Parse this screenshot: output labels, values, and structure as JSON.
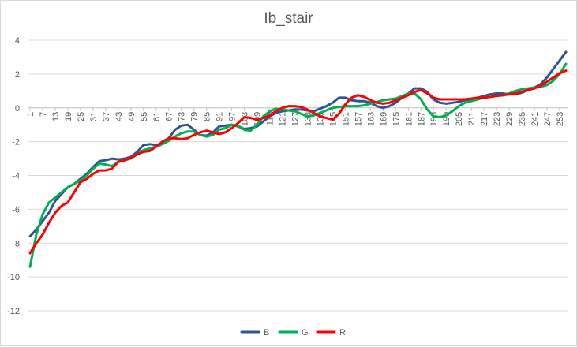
{
  "chart_data": {
    "type": "line",
    "title": "Ib_stair",
    "xlabel": "",
    "ylabel": "",
    "ylim": [
      -12,
      4
    ],
    "y_ticks": [
      4,
      2,
      0,
      -2,
      -4,
      -6,
      -8,
      -10,
      -12
    ],
    "x_range": [
      1,
      256
    ],
    "x_tick_labels": [
      "1",
      "7",
      "13",
      "19",
      "25",
      "31",
      "37",
      "43",
      "49",
      "55",
      "61",
      "67",
      "73",
      "79",
      "85",
      "91",
      "97",
      "103",
      "109",
      "115",
      "121",
      "127",
      "133",
      "139",
      "145",
      "151",
      "157",
      "163",
      "169",
      "175",
      "181",
      "187",
      "193",
      "199",
      "205",
      "211",
      "217",
      "223",
      "229",
      "235",
      "241",
      "247",
      "253"
    ],
    "grid": "horizontal",
    "legend_position": "bottom",
    "series": [
      {
        "name": "B",
        "color": "#2f5597",
        "points": [
          [
            1,
            -7.6
          ],
          [
            4,
            -7.2
          ],
          [
            7,
            -6.7
          ],
          [
            10,
            -6.2
          ],
          [
            13,
            -5.5
          ],
          [
            16,
            -5.1
          ],
          [
            19,
            -4.7
          ],
          [
            22,
            -4.5
          ],
          [
            25,
            -4.2
          ],
          [
            28,
            -3.9
          ],
          [
            31,
            -3.5
          ],
          [
            34,
            -3.15
          ],
          [
            37,
            -3.1
          ],
          [
            40,
            -3.0
          ],
          [
            43,
            -3.05
          ],
          [
            46,
            -3.0
          ],
          [
            49,
            -2.9
          ],
          [
            52,
            -2.6
          ],
          [
            55,
            -2.2
          ],
          [
            58,
            -2.15
          ],
          [
            61,
            -2.2
          ],
          [
            64,
            -2.1
          ],
          [
            67,
            -1.8
          ],
          [
            70,
            -1.3
          ],
          [
            73,
            -1.05
          ],
          [
            76,
            -1.0
          ],
          [
            79,
            -1.3
          ],
          [
            82,
            -1.6
          ],
          [
            85,
            -1.65
          ],
          [
            88,
            -1.45
          ],
          [
            91,
            -1.1
          ],
          [
            94,
            -1.05
          ],
          [
            97,
            -1.0
          ],
          [
            100,
            -1.1
          ],
          [
            103,
            -1.25
          ],
          [
            106,
            -1.2
          ],
          [
            109,
            -1.1
          ],
          [
            112,
            -0.8
          ],
          [
            115,
            -0.5
          ],
          [
            118,
            -0.3
          ],
          [
            121,
            -0.2
          ],
          [
            124,
            -0.15
          ],
          [
            127,
            -0.1
          ],
          [
            130,
            -0.1
          ],
          [
            133,
            -0.15
          ],
          [
            136,
            -0.2
          ],
          [
            139,
            -0.05
          ],
          [
            142,
            0.1
          ],
          [
            145,
            0.3
          ],
          [
            148,
            0.6
          ],
          [
            151,
            0.6
          ],
          [
            154,
            0.45
          ],
          [
            157,
            0.4
          ],
          [
            160,
            0.4
          ],
          [
            163,
            0.3
          ],
          [
            166,
            0.1
          ],
          [
            169,
            0.0
          ],
          [
            172,
            0.1
          ],
          [
            175,
            0.3
          ],
          [
            178,
            0.6
          ],
          [
            181,
            0.85
          ],
          [
            184,
            1.15
          ],
          [
            187,
            1.15
          ],
          [
            190,
            0.95
          ],
          [
            193,
            0.5
          ],
          [
            196,
            0.3
          ],
          [
            199,
            0.25
          ],
          [
            202,
            0.3
          ],
          [
            205,
            0.35
          ],
          [
            208,
            0.45
          ],
          [
            211,
            0.5
          ],
          [
            214,
            0.6
          ],
          [
            217,
            0.7
          ],
          [
            220,
            0.8
          ],
          [
            223,
            0.85
          ],
          [
            226,
            0.85
          ],
          [
            229,
            0.8
          ],
          [
            232,
            0.8
          ],
          [
            235,
            0.9
          ],
          [
            238,
            1.05
          ],
          [
            241,
            1.2
          ],
          [
            244,
            1.4
          ],
          [
            247,
            1.8
          ],
          [
            250,
            2.3
          ],
          [
            253,
            2.8
          ],
          [
            256,
            3.3
          ]
        ]
      },
      {
        "name": "G",
        "color": "#00b050",
        "points": [
          [
            1,
            -9.4
          ],
          [
            4,
            -7.5
          ],
          [
            7,
            -6.3
          ],
          [
            10,
            -5.6
          ],
          [
            13,
            -5.3
          ],
          [
            16,
            -5.0
          ],
          [
            19,
            -4.7
          ],
          [
            22,
            -4.5
          ],
          [
            25,
            -4.3
          ],
          [
            28,
            -4.0
          ],
          [
            31,
            -3.6
          ],
          [
            34,
            -3.3
          ],
          [
            37,
            -3.35
          ],
          [
            40,
            -3.45
          ],
          [
            43,
            -3.2
          ],
          [
            46,
            -3.1
          ],
          [
            49,
            -3.0
          ],
          [
            52,
            -2.75
          ],
          [
            55,
            -2.5
          ],
          [
            58,
            -2.4
          ],
          [
            61,
            -2.3
          ],
          [
            64,
            -2.15
          ],
          [
            67,
            -1.95
          ],
          [
            70,
            -1.7
          ],
          [
            73,
            -1.5
          ],
          [
            76,
            -1.4
          ],
          [
            79,
            -1.4
          ],
          [
            82,
            -1.6
          ],
          [
            85,
            -1.7
          ],
          [
            88,
            -1.6
          ],
          [
            91,
            -1.3
          ],
          [
            94,
            -1.2
          ],
          [
            97,
            -1.0
          ],
          [
            100,
            -1.05
          ],
          [
            103,
            -1.3
          ],
          [
            106,
            -1.35
          ],
          [
            109,
            -1.0
          ],
          [
            112,
            -0.5
          ],
          [
            115,
            -0.2
          ],
          [
            118,
            -0.05
          ],
          [
            121,
            -0.1
          ],
          [
            124,
            -0.15
          ],
          [
            127,
            -0.2
          ],
          [
            130,
            -0.35
          ],
          [
            133,
            -0.5
          ],
          [
            136,
            -0.45
          ],
          [
            139,
            -0.3
          ],
          [
            142,
            -0.15
          ],
          [
            145,
            0.0
          ],
          [
            148,
            0.05
          ],
          [
            151,
            0.1
          ],
          [
            154,
            0.1
          ],
          [
            157,
            0.1
          ],
          [
            160,
            0.15
          ],
          [
            163,
            0.25
          ],
          [
            166,
            0.35
          ],
          [
            169,
            0.45
          ],
          [
            172,
            0.5
          ],
          [
            175,
            0.55
          ],
          [
            178,
            0.7
          ],
          [
            181,
            0.85
          ],
          [
            184,
            0.85
          ],
          [
            187,
            0.5
          ],
          [
            190,
            -0.1
          ],
          [
            193,
            -0.5
          ],
          [
            196,
            -0.55
          ],
          [
            199,
            -0.45
          ],
          [
            202,
            -0.2
          ],
          [
            205,
            0.1
          ],
          [
            208,
            0.3
          ],
          [
            211,
            0.4
          ],
          [
            214,
            0.5
          ],
          [
            217,
            0.6
          ],
          [
            220,
            0.65
          ],
          [
            223,
            0.7
          ],
          [
            226,
            0.75
          ],
          [
            229,
            0.85
          ],
          [
            232,
            1.0
          ],
          [
            235,
            1.1
          ],
          [
            238,
            1.15
          ],
          [
            241,
            1.2
          ],
          [
            244,
            1.25
          ],
          [
            247,
            1.35
          ],
          [
            250,
            1.6
          ],
          [
            253,
            2.0
          ],
          [
            256,
            2.6
          ]
        ]
      },
      {
        "name": "R",
        "color": "#ff0000",
        "points": [
          [
            1,
            -8.6
          ],
          [
            4,
            -8.0
          ],
          [
            7,
            -7.5
          ],
          [
            10,
            -6.8
          ],
          [
            13,
            -6.2
          ],
          [
            16,
            -5.8
          ],
          [
            19,
            -5.6
          ],
          [
            22,
            -5.0
          ],
          [
            25,
            -4.4
          ],
          [
            28,
            -4.2
          ],
          [
            31,
            -3.9
          ],
          [
            34,
            -3.7
          ],
          [
            37,
            -3.7
          ],
          [
            40,
            -3.6
          ],
          [
            43,
            -3.2
          ],
          [
            46,
            -3.1
          ],
          [
            49,
            -2.95
          ],
          [
            52,
            -2.75
          ],
          [
            55,
            -2.6
          ],
          [
            58,
            -2.55
          ],
          [
            61,
            -2.3
          ],
          [
            64,
            -2.0
          ],
          [
            67,
            -1.8
          ],
          [
            70,
            -1.8
          ],
          [
            73,
            -1.85
          ],
          [
            76,
            -1.8
          ],
          [
            79,
            -1.6
          ],
          [
            82,
            -1.45
          ],
          [
            85,
            -1.35
          ],
          [
            88,
            -1.45
          ],
          [
            91,
            -1.55
          ],
          [
            94,
            -1.45
          ],
          [
            97,
            -1.2
          ],
          [
            100,
            -0.9
          ],
          [
            103,
            -0.55
          ],
          [
            106,
            -0.6
          ],
          [
            109,
            -0.7
          ],
          [
            112,
            -0.6
          ],
          [
            115,
            -0.45
          ],
          [
            118,
            -0.2
          ],
          [
            121,
            0.0
          ],
          [
            124,
            0.1
          ],
          [
            127,
            0.1
          ],
          [
            130,
            0.05
          ],
          [
            133,
            -0.1
          ],
          [
            136,
            -0.3
          ],
          [
            139,
            -0.5
          ],
          [
            142,
            -0.6
          ],
          [
            145,
            -0.7
          ],
          [
            148,
            -0.35
          ],
          [
            151,
            0.2
          ],
          [
            154,
            0.6
          ],
          [
            157,
            0.75
          ],
          [
            160,
            0.65
          ],
          [
            163,
            0.45
          ],
          [
            166,
            0.3
          ],
          [
            169,
            0.25
          ],
          [
            172,
            0.3
          ],
          [
            175,
            0.45
          ],
          [
            178,
            0.6
          ],
          [
            181,
            0.75
          ],
          [
            184,
            0.95
          ],
          [
            187,
            1.05
          ],
          [
            190,
            0.85
          ],
          [
            193,
            0.6
          ],
          [
            196,
            0.5
          ],
          [
            199,
            0.5
          ],
          [
            202,
            0.5
          ],
          [
            205,
            0.5
          ],
          [
            208,
            0.5
          ],
          [
            211,
            0.55
          ],
          [
            214,
            0.6
          ],
          [
            217,
            0.6
          ],
          [
            220,
            0.65
          ],
          [
            223,
            0.7
          ],
          [
            226,
            0.75
          ],
          [
            229,
            0.8
          ],
          [
            232,
            0.85
          ],
          [
            235,
            0.95
          ],
          [
            238,
            1.05
          ],
          [
            241,
            1.15
          ],
          [
            244,
            1.3
          ],
          [
            247,
            1.55
          ],
          [
            250,
            1.8
          ],
          [
            253,
            2.05
          ],
          [
            256,
            2.2
          ]
        ]
      }
    ]
  }
}
